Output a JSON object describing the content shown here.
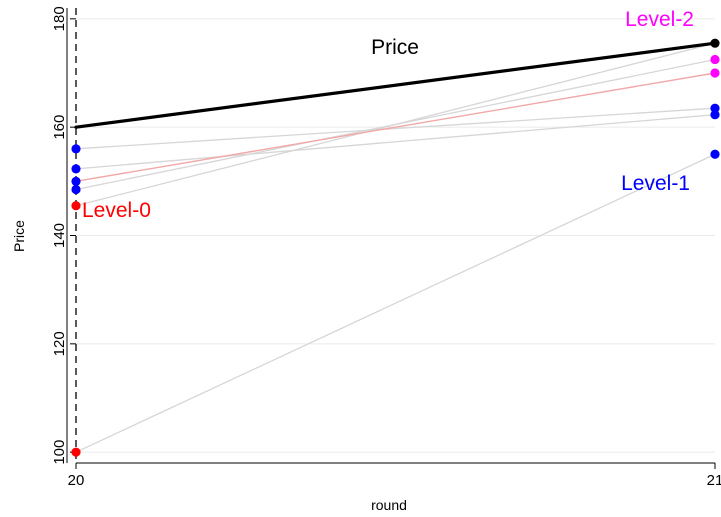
{
  "chart_data": {
    "type": "line",
    "xlabel": "round",
    "ylabel": "Price",
    "x_ticks": [
      20,
      21
    ],
    "y_ticks": [
      100,
      120,
      140,
      160,
      180
    ],
    "xlim": [
      20,
      21
    ],
    "ylim": [
      98,
      182
    ],
    "grid": true,
    "vertical_reference_line": {
      "x": 20,
      "style": "dashed"
    },
    "colors": {
      "price": "#000000",
      "level0": "#ff0000",
      "level1": "#0000ff",
      "level2": "#ff00ff",
      "gray_line": "#d6d6d6",
      "red_line": "#f2a8a8",
      "grid": "#ebebeb"
    },
    "series": [
      {
        "group": "price",
        "x": [
          20,
          21
        ],
        "y": [
          160.0,
          175.5
        ]
      },
      {
        "group": "level0",
        "line": "red",
        "x": [
          20,
          21
        ],
        "y": [
          150.0,
          170.0
        ]
      },
      {
        "group": "level0",
        "line": "gray",
        "x": [
          20,
          21
        ],
        "y": [
          100.0,
          155.0
        ]
      },
      {
        "group": "level0",
        "line": "gray",
        "x": [
          20,
          21
        ],
        "y": [
          145.5,
          175.5
        ]
      },
      {
        "group": "level1",
        "line": "gray",
        "x": [
          20,
          21
        ],
        "y": [
          156.0,
          163.5
        ]
      },
      {
        "group": "level1",
        "line": "gray",
        "x": [
          20,
          21
        ],
        "y": [
          152.3,
          162.3
        ]
      },
      {
        "group": "level1",
        "line": "gray",
        "x": [
          20,
          21
        ],
        "y": [
          148.5,
          172.5
        ]
      }
    ],
    "points": {
      "level0": [
        {
          "x": 20,
          "y": 145.5
        },
        {
          "x": 20,
          "y": 100.0
        }
      ],
      "level1": [
        {
          "x": 20,
          "y": 156.0
        },
        {
          "x": 20,
          "y": 152.3
        },
        {
          "x": 20,
          "y": 150.0
        },
        {
          "x": 20,
          "y": 148.5
        },
        {
          "x": 21,
          "y": 163.5
        },
        {
          "x": 21,
          "y": 162.3
        },
        {
          "x": 21,
          "y": 155.0
        }
      ],
      "level2": [
        {
          "x": 21,
          "y": 172.5
        },
        {
          "x": 21,
          "y": 170.0
        }
      ],
      "price": [
        {
          "x": 21,
          "y": 175.5
        }
      ]
    },
    "annotations": [
      {
        "text": "Price",
        "group": "price",
        "anchor": "price-line-middle"
      },
      {
        "text": "Level-0",
        "group": "level0",
        "anchor": "left-points"
      },
      {
        "text": "Level-1",
        "group": "level1",
        "anchor": "right-points"
      },
      {
        "text": "Level-2",
        "group": "level2",
        "anchor": "top-right"
      }
    ]
  }
}
